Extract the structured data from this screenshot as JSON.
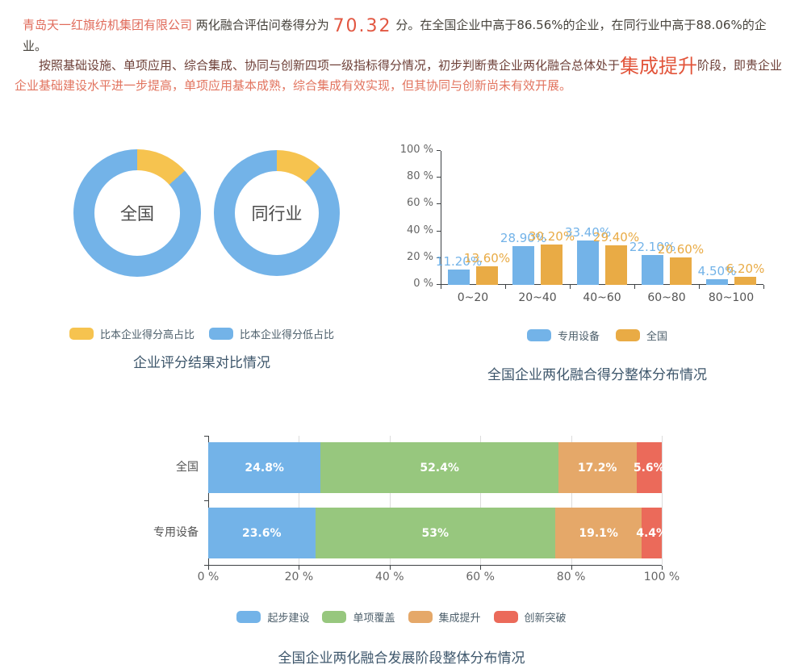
{
  "report": {
    "line1_spans": [
      {
        "text": "青岛天一红旗纺机集团有限公司",
        "style": "company"
      },
      {
        "text": " 两化融合评估问卷得分为 ",
        "style": "dark"
      },
      {
        "text": "70.32",
        "style": "score"
      },
      {
        "text": " 分。在全国企业中高于86.56%的企业，在同行业中高于88.06%的企业。",
        "style": "dark"
      }
    ],
    "line2_spans": [
      {
        "text": "按照基础设施、单项应用、综合集成、协同与创新四项一级指标得分情况，初步判断贵企业两化融合总体处于",
        "style": "maroon"
      },
      {
        "text": "集成提升",
        "style": "stage"
      },
      {
        "text": "阶段，即贵企业",
        "style": "maroon"
      },
      {
        "text": "企业基础建设水平进一步提高，单项应用基本成熟，综合集成有效实现，但其协同与创新尚未有效开展。",
        "style": "salmon"
      }
    ]
  },
  "colors": {
    "company_highlight": "#E06B5B",
    "body_text": "#46423B",
    "score_highlight": "#E25742",
    "stage_highlight": "#E2543A",
    "analysis_dark": "#6E4038",
    "analysis_light": "#E2745F",
    "series_blue": "#73B3E8",
    "series_yellow": "#F6C34F",
    "series_orange": "#E9AB45",
    "series_green": "#97C77E",
    "series_stack_orange": "#E5A869",
    "series_red": "#EB6A5A",
    "chart_title": "#3D566B"
  },
  "chart_data": [
    {
      "type": "pie",
      "variant": "donut-pair",
      "title": "企业评分结果对比情况",
      "donuts": [
        {
          "center_label": "全国",
          "slices": [
            {
              "name": "比本企业得分高占比",
              "value": 13.44,
              "color": "#F6C34F"
            },
            {
              "name": "比本企业得分低占比",
              "value": 86.56,
              "color": "#73B3E8"
            }
          ]
        },
        {
          "center_label": "同行业",
          "slices": [
            {
              "name": "比本企业得分高占比",
              "value": 11.94,
              "color": "#F6C34F"
            },
            {
              "name": "比本企业得分低占比",
              "value": 88.06,
              "color": "#73B3E8"
            }
          ]
        }
      ],
      "legend": [
        {
          "label": "比本企业得分高占比",
          "color": "#F6C34F"
        },
        {
          "label": "比本企业得分低占比",
          "color": "#73B3E8"
        }
      ],
      "legend_position": "bottom"
    },
    {
      "type": "bar",
      "title": "全国企业两化融合得分整体分布情况",
      "categories": [
        "0~20",
        "20~40",
        "40~60",
        "60~80",
        "80~100"
      ],
      "series": [
        {
          "name": "专用设备",
          "color": "#73B3E8",
          "values": [
            11.2,
            28.9,
            33.4,
            22.1,
            4.5
          ],
          "labels": [
            "11.20%",
            "28.90%",
            "33.40%",
            "22.10%",
            "4.50%"
          ]
        },
        {
          "name": "全国",
          "color": "#E9AB45",
          "values": [
            13.6,
            30.2,
            29.4,
            20.6,
            6.2
          ],
          "labels": [
            "13.60%",
            "30.20%",
            "29.40%",
            "20.60%",
            "6.20%"
          ]
        }
      ],
      "y_ticks": [
        "0 %",
        "20 %",
        "40 %",
        "60 %",
        "80 %",
        "100 %"
      ],
      "ylim": [
        0,
        100
      ],
      "grid": false,
      "legend_position": "bottom"
    },
    {
      "type": "bar",
      "variant": "stacked-horizontal",
      "title": "全国企业两化融合发展阶段整体分布情况",
      "categories": [
        "全国",
        "专用设备"
      ],
      "series": [
        {
          "name": "起步建设",
          "color": "#73B3E8",
          "values": [
            24.8,
            23.6
          ],
          "labels": [
            "24.8%",
            "23.6%"
          ]
        },
        {
          "name": "单项覆盖",
          "color": "#97C77E",
          "values": [
            52.4,
            53
          ],
          "labels": [
            "52.4%",
            "53%"
          ]
        },
        {
          "name": "集成提升",
          "color": "#E5A869",
          "values": [
            17.2,
            19.1
          ],
          "labels": [
            "17.2%",
            "19.1%"
          ]
        },
        {
          "name": "创新突破",
          "color": "#EB6A5A",
          "values": [
            5.6,
            4.4
          ],
          "labels": [
            "5.6%",
            "4.4%"
          ]
        }
      ],
      "x_ticks": [
        "0 %",
        "20 %",
        "40 %",
        "60 %",
        "80 %",
        "100 %"
      ],
      "xlim": [
        0,
        100
      ],
      "grid": true,
      "legend_position": "bottom"
    }
  ]
}
